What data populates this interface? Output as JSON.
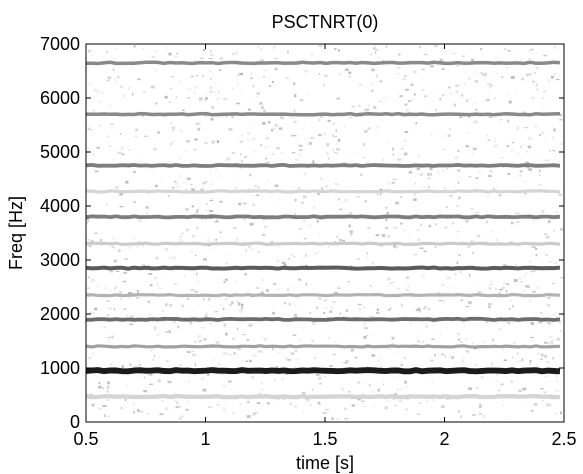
{
  "chart_data": {
    "type": "heatmap",
    "title": "PSCTNRT(0)",
    "xlabel": "time [s]",
    "ylabel": "Freq [Hz]",
    "xlim": [
      0.5,
      2.5
    ],
    "ylim": [
      0,
      7000
    ],
    "x_ticks": [
      0.5,
      1,
      1.5,
      2,
      2.5
    ],
    "x_tick_labels": [
      "0.5",
      "1",
      "1.5",
      "2",
      "2.5"
    ],
    "y_ticks": [
      0,
      1000,
      2000,
      3000,
      4000,
      5000,
      6000,
      7000
    ],
    "y_tick_labels": [
      "0",
      "1000",
      "2000",
      "3000",
      "4000",
      "5000",
      "6000",
      "7000"
    ],
    "colormap": "gray-reversed",
    "grid": false,
    "harmonics": [
      {
        "freq": 950,
        "intensity": 0.97,
        "width_hz": 110
      },
      {
        "freq": 1900,
        "intensity": 0.62,
        "width_hz": 70
      },
      {
        "freq": 2850,
        "intensity": 0.7,
        "width_hz": 75
      },
      {
        "freq": 3800,
        "intensity": 0.55,
        "width_hz": 70
      },
      {
        "freq": 4750,
        "intensity": 0.55,
        "width_hz": 70
      },
      {
        "freq": 5700,
        "intensity": 0.5,
        "width_hz": 65
      },
      {
        "freq": 6650,
        "intensity": 0.5,
        "width_hz": 65
      },
      {
        "freq": 470,
        "intensity": 0.18,
        "width_hz": 80
      },
      {
        "freq": 1400,
        "intensity": 0.4,
        "width_hz": 60
      },
      {
        "freq": 2350,
        "intensity": 0.32,
        "width_hz": 60
      },
      {
        "freq": 3300,
        "intensity": 0.22,
        "width_hz": 60
      },
      {
        "freq": 4270,
        "intensity": 0.18,
        "width_hz": 60
      }
    ]
  }
}
